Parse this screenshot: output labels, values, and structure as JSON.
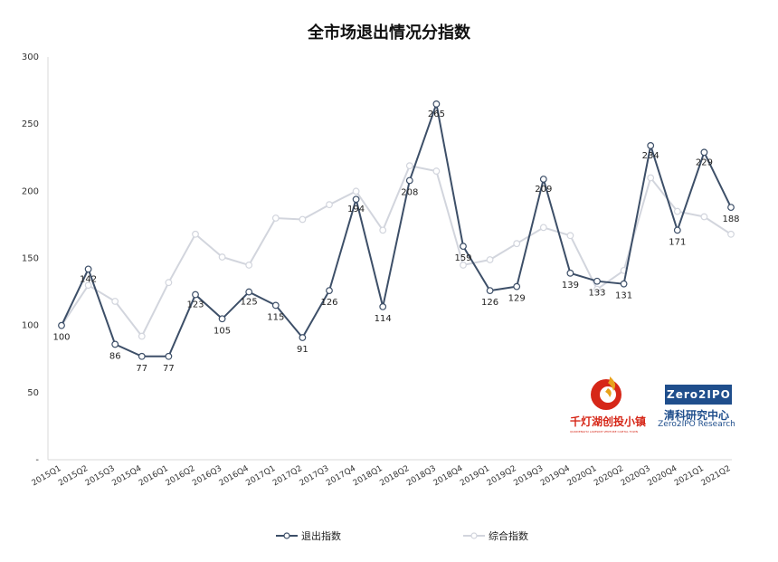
{
  "chart_data": {
    "type": "line",
    "title": "全市场退出情况分指数",
    "categories": [
      "2015Q1",
      "2015Q2",
      "2015Q3",
      "2015Q4",
      "2016Q1",
      "2016Q2",
      "2016Q3",
      "2016Q4",
      "2017Q1",
      "2017Q2",
      "2017Q3",
      "2017Q4",
      "2018Q1",
      "2018Q2",
      "2018Q3",
      "2018Q4",
      "2019Q1",
      "2019Q2",
      "2019Q3",
      "2019Q4",
      "2020Q1",
      "2020Q2",
      "2020Q3",
      "2020Q4",
      "2021Q1",
      "2021Q2"
    ],
    "series": [
      {
        "name": "退出指数",
        "color": "#3d4f68",
        "values": [
          100,
          142,
          86,
          77,
          77,
          123,
          105,
          125,
          115,
          91,
          126,
          194,
          114,
          208,
          265,
          159,
          126,
          129,
          209,
          139,
          133,
          131,
          234,
          171,
          229,
          188
        ],
        "labels": [
          "100",
          "142",
          "86",
          "77",
          "77",
          "123",
          "105",
          "125",
          "115",
          "91",
          "126",
          "194",
          "114",
          "208",
          "265",
          "159",
          "126",
          "129",
          "209",
          "139",
          "133",
          "131",
          "234",
          "171",
          "229",
          "188"
        ]
      },
      {
        "name": "综合指数",
        "color": "#d2d5dd",
        "values": [
          100,
          130,
          118,
          92,
          132,
          168,
          151,
          145,
          180,
          179,
          190,
          200,
          171,
          219,
          215,
          145,
          149,
          161,
          173,
          167,
          127,
          141,
          210,
          185,
          181,
          168
        ]
      }
    ],
    "ylim": [
      0,
      300
    ],
    "yticks": [
      "-",
      "50",
      "100",
      "150",
      "200",
      "250",
      "300"
    ],
    "grid": false,
    "legend_position": "bottom"
  },
  "logos": {
    "left": {
      "text": "千灯湖创投小镇",
      "subtext": "QIANDENGHU LAKESIDE VENTURE CAPITAL TOWN"
    },
    "right": {
      "badge": "Zero2IPO",
      "text": "清科研究中心",
      "subtext": "Zero2IPO Research"
    }
  }
}
